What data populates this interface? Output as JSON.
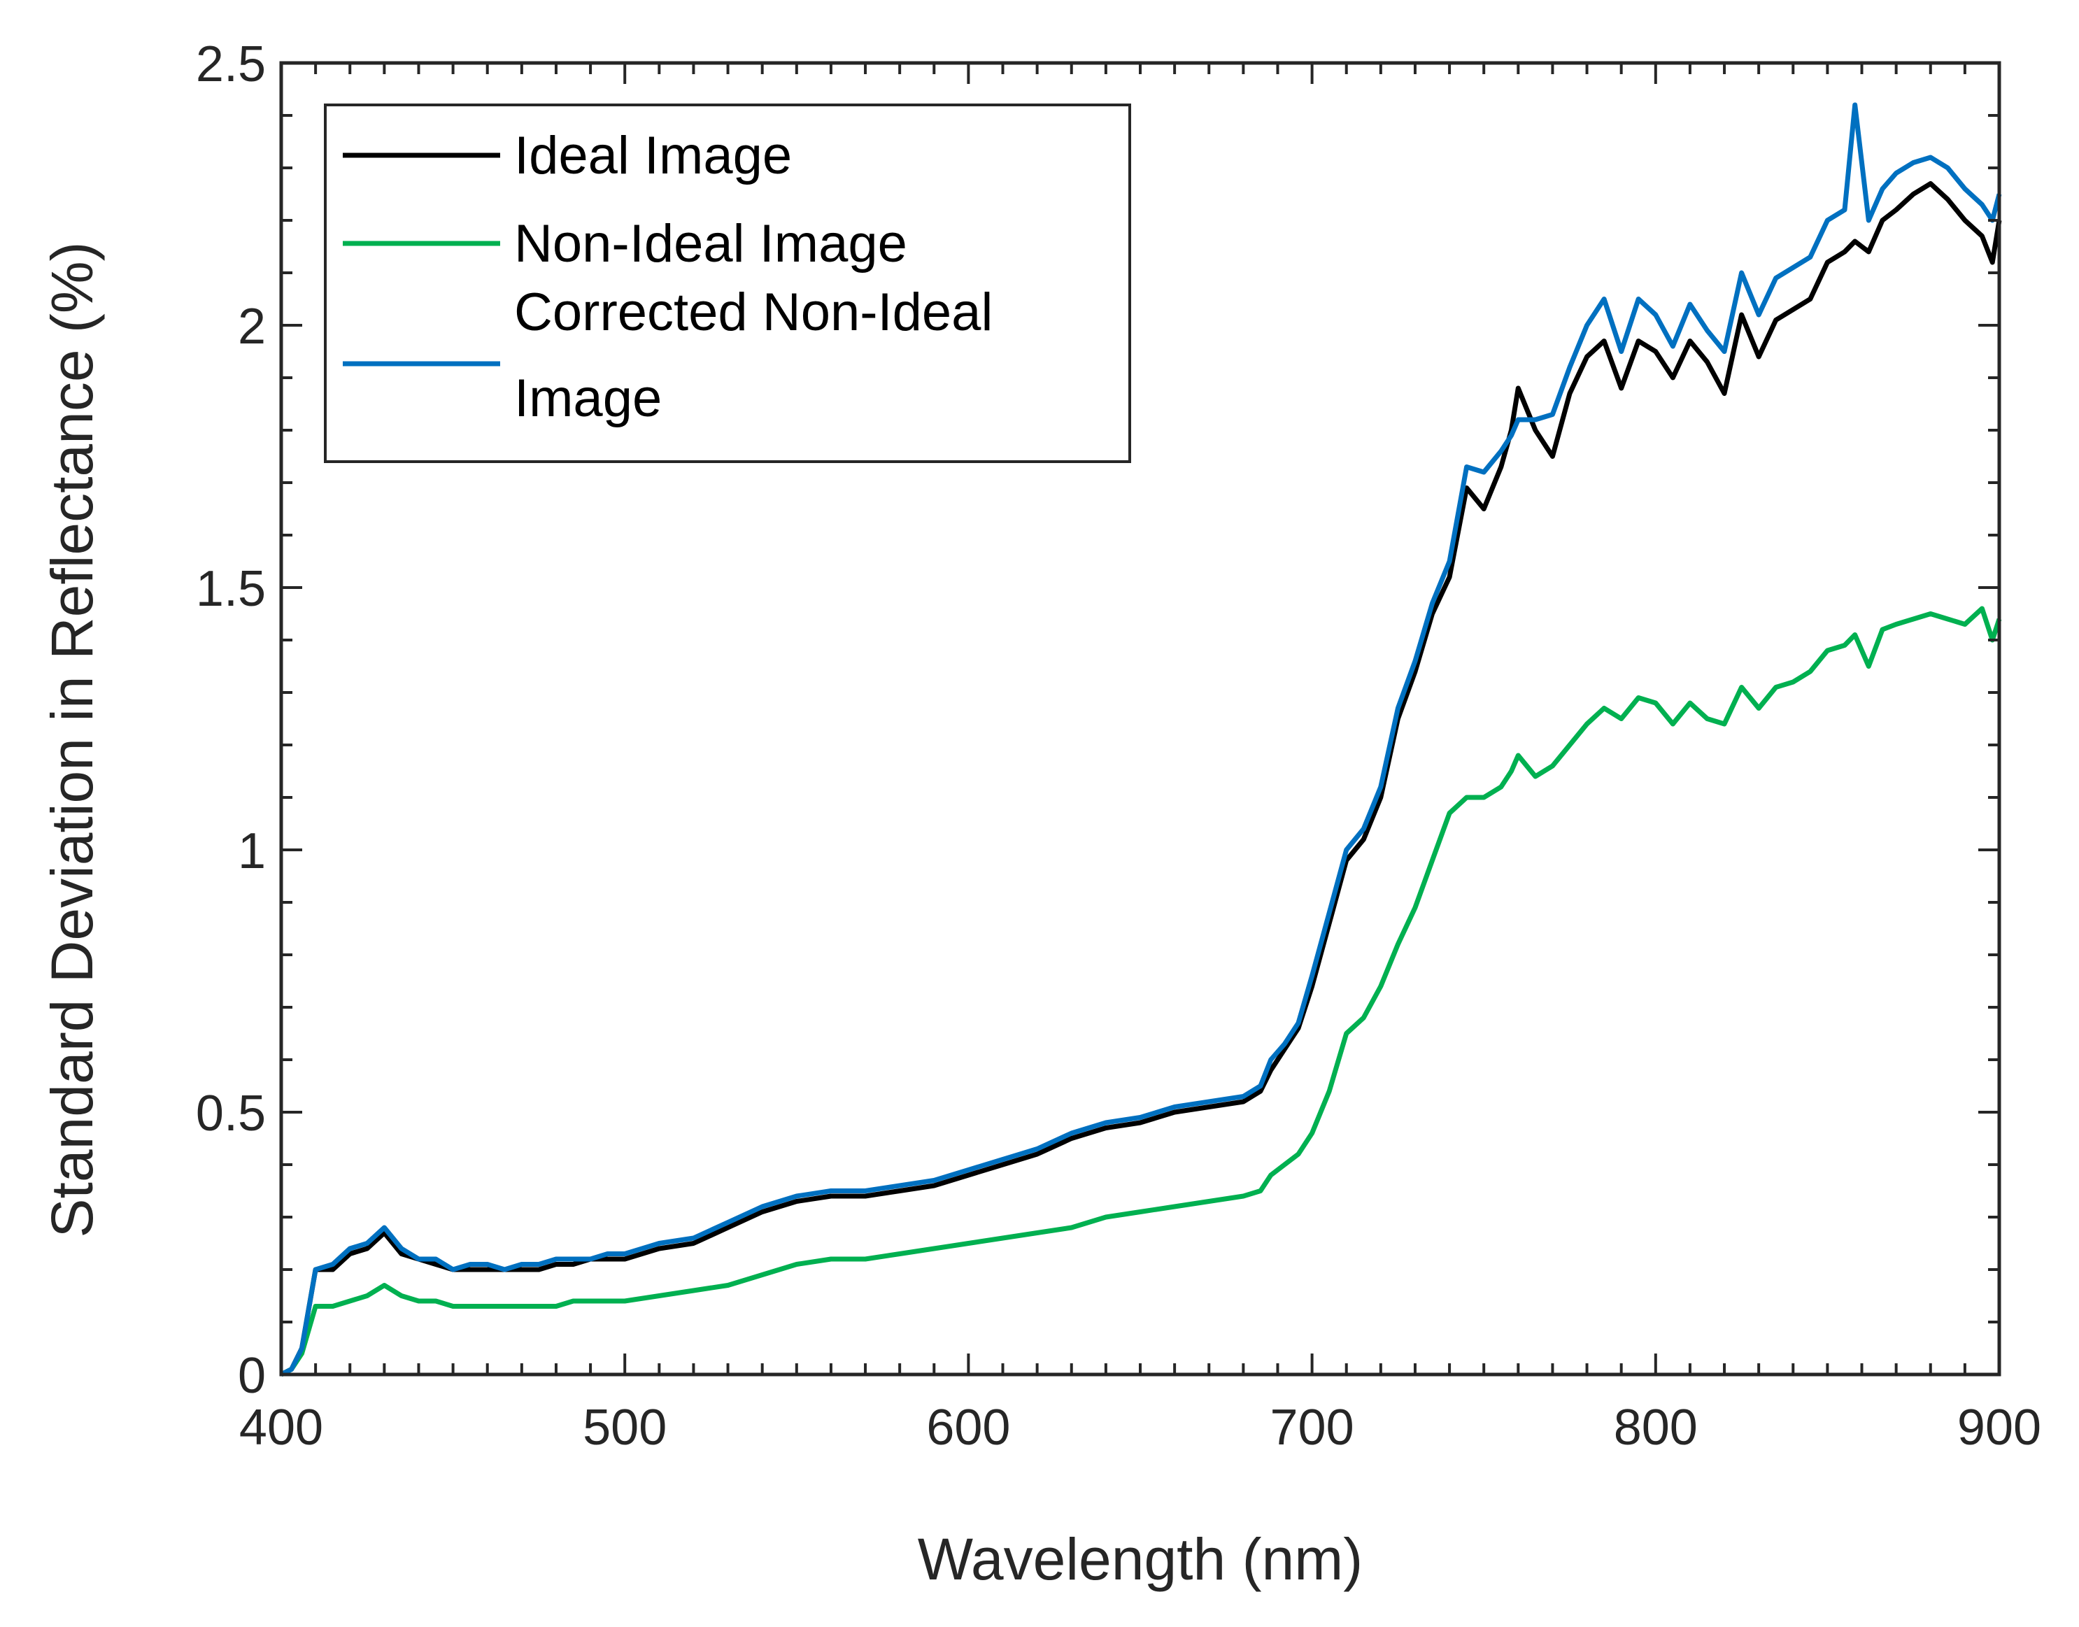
{
  "chart_data": {
    "type": "line",
    "title": "",
    "xlabel": "Wavelength (nm)",
    "ylabel": "Standard Deviation in Reflectance (%)",
    "xlim": [
      400,
      900
    ],
    "ylim": [
      0,
      2.5
    ],
    "xticks": [
      400,
      500,
      600,
      700,
      800,
      900
    ],
    "xtick_labels": [
      "400",
      "500",
      "600",
      "700",
      "800",
      "900"
    ],
    "yticks": [
      0,
      0.5,
      1,
      1.5,
      2,
      2.5
    ],
    "ytick_labels": [
      "0",
      "0.5",
      "1",
      "1.5",
      "2",
      "2.5"
    ],
    "grid": false,
    "legend_position": "top-left",
    "series": [
      {
        "name": "Ideal Image",
        "color": "#000000",
        "x": [
          400,
          403,
          406,
          410,
          415,
          420,
          425,
          430,
          435,
          440,
          445,
          450,
          455,
          460,
          465,
          470,
          475,
          480,
          485,
          490,
          495,
          500,
          510,
          520,
          530,
          540,
          550,
          560,
          570,
          580,
          590,
          600,
          610,
          620,
          630,
          640,
          650,
          660,
          670,
          680,
          685,
          688,
          692,
          696,
          700,
          705,
          710,
          715,
          720,
          725,
          730,
          735,
          740,
          745,
          750,
          755,
          758,
          760,
          765,
          770,
          775,
          780,
          785,
          790,
          795,
          800,
          805,
          810,
          815,
          820,
          825,
          830,
          835,
          840,
          845,
          850,
          855,
          858,
          862,
          866,
          870,
          875,
          880,
          885,
          890,
          895,
          898,
          900
        ],
        "y": [
          0.0,
          0.01,
          0.05,
          0.2,
          0.2,
          0.23,
          0.24,
          0.27,
          0.23,
          0.22,
          0.21,
          0.2,
          0.2,
          0.2,
          0.2,
          0.2,
          0.2,
          0.21,
          0.21,
          0.22,
          0.22,
          0.22,
          0.24,
          0.25,
          0.28,
          0.31,
          0.33,
          0.34,
          0.34,
          0.35,
          0.36,
          0.38,
          0.4,
          0.42,
          0.45,
          0.47,
          0.48,
          0.5,
          0.51,
          0.52,
          0.54,
          0.58,
          0.62,
          0.66,
          0.74,
          0.86,
          0.98,
          1.02,
          1.1,
          1.25,
          1.34,
          1.45,
          1.52,
          1.69,
          1.65,
          1.73,
          1.8,
          1.88,
          1.8,
          1.75,
          1.87,
          1.94,
          1.97,
          1.88,
          1.97,
          1.95,
          1.9,
          1.97,
          1.93,
          1.87,
          2.02,
          1.94,
          2.01,
          2.03,
          2.05,
          2.12,
          2.14,
          2.16,
          2.14,
          2.2,
          2.22,
          2.25,
          2.27,
          2.24,
          2.2,
          2.17,
          2.12,
          2.2
        ]
      },
      {
        "name": "Non-Ideal Image",
        "color": "#00b050",
        "x": [
          400,
          403,
          406,
          410,
          415,
          420,
          425,
          430,
          435,
          440,
          445,
          450,
          455,
          460,
          465,
          470,
          475,
          480,
          485,
          490,
          495,
          500,
          510,
          520,
          530,
          540,
          550,
          560,
          570,
          580,
          590,
          600,
          610,
          620,
          630,
          640,
          650,
          660,
          670,
          680,
          685,
          688,
          692,
          696,
          700,
          705,
          710,
          715,
          720,
          725,
          730,
          735,
          740,
          745,
          750,
          755,
          758,
          760,
          765,
          770,
          775,
          780,
          785,
          790,
          795,
          800,
          805,
          810,
          815,
          820,
          825,
          830,
          835,
          840,
          845,
          850,
          855,
          858,
          862,
          866,
          870,
          875,
          880,
          885,
          890,
          895,
          898,
          900
        ],
        "y": [
          0.0,
          0.01,
          0.04,
          0.13,
          0.13,
          0.14,
          0.15,
          0.17,
          0.15,
          0.14,
          0.14,
          0.13,
          0.13,
          0.13,
          0.13,
          0.13,
          0.13,
          0.13,
          0.14,
          0.14,
          0.14,
          0.14,
          0.15,
          0.16,
          0.17,
          0.19,
          0.21,
          0.22,
          0.22,
          0.23,
          0.24,
          0.25,
          0.26,
          0.27,
          0.28,
          0.3,
          0.31,
          0.32,
          0.33,
          0.34,
          0.35,
          0.38,
          0.4,
          0.42,
          0.46,
          0.54,
          0.65,
          0.68,
          0.74,
          0.82,
          0.89,
          0.98,
          1.07,
          1.1,
          1.1,
          1.12,
          1.15,
          1.18,
          1.14,
          1.16,
          1.2,
          1.24,
          1.27,
          1.25,
          1.29,
          1.28,
          1.24,
          1.28,
          1.25,
          1.24,
          1.31,
          1.27,
          1.31,
          1.32,
          1.34,
          1.38,
          1.39,
          1.41,
          1.35,
          1.42,
          1.43,
          1.44,
          1.45,
          1.44,
          1.43,
          1.46,
          1.4,
          1.44
        ]
      },
      {
        "name": "Corrected Non-Ideal Image",
        "color": "#0070c0",
        "x": [
          400,
          403,
          406,
          410,
          415,
          420,
          425,
          430,
          435,
          440,
          445,
          450,
          455,
          460,
          465,
          470,
          475,
          480,
          485,
          490,
          495,
          500,
          510,
          520,
          530,
          540,
          550,
          560,
          570,
          580,
          590,
          600,
          610,
          620,
          630,
          640,
          650,
          660,
          670,
          680,
          685,
          688,
          692,
          696,
          700,
          705,
          710,
          715,
          720,
          725,
          730,
          735,
          740,
          745,
          750,
          755,
          758,
          760,
          765,
          770,
          775,
          780,
          785,
          790,
          795,
          800,
          805,
          810,
          815,
          820,
          825,
          830,
          835,
          840,
          845,
          850,
          855,
          858,
          862,
          866,
          870,
          875,
          880,
          885,
          890,
          895,
          898,
          900
        ],
        "y": [
          0.0,
          0.01,
          0.05,
          0.2,
          0.21,
          0.24,
          0.25,
          0.28,
          0.24,
          0.22,
          0.22,
          0.2,
          0.21,
          0.21,
          0.2,
          0.21,
          0.21,
          0.22,
          0.22,
          0.22,
          0.23,
          0.23,
          0.25,
          0.26,
          0.29,
          0.32,
          0.34,
          0.35,
          0.35,
          0.36,
          0.37,
          0.39,
          0.41,
          0.43,
          0.46,
          0.48,
          0.49,
          0.51,
          0.52,
          0.53,
          0.55,
          0.6,
          0.63,
          0.67,
          0.76,
          0.88,
          1.0,
          1.04,
          1.12,
          1.27,
          1.36,
          1.47,
          1.55,
          1.73,
          1.72,
          1.76,
          1.79,
          1.82,
          1.82,
          1.83,
          1.92,
          2.0,
          2.05,
          1.95,
          2.05,
          2.02,
          1.96,
          2.04,
          1.99,
          1.95,
          2.1,
          2.02,
          2.09,
          2.11,
          2.13,
          2.2,
          2.22,
          2.42,
          2.2,
          2.26,
          2.29,
          2.31,
          2.32,
          2.3,
          2.26,
          2.23,
          2.2,
          2.25
        ]
      }
    ]
  }
}
